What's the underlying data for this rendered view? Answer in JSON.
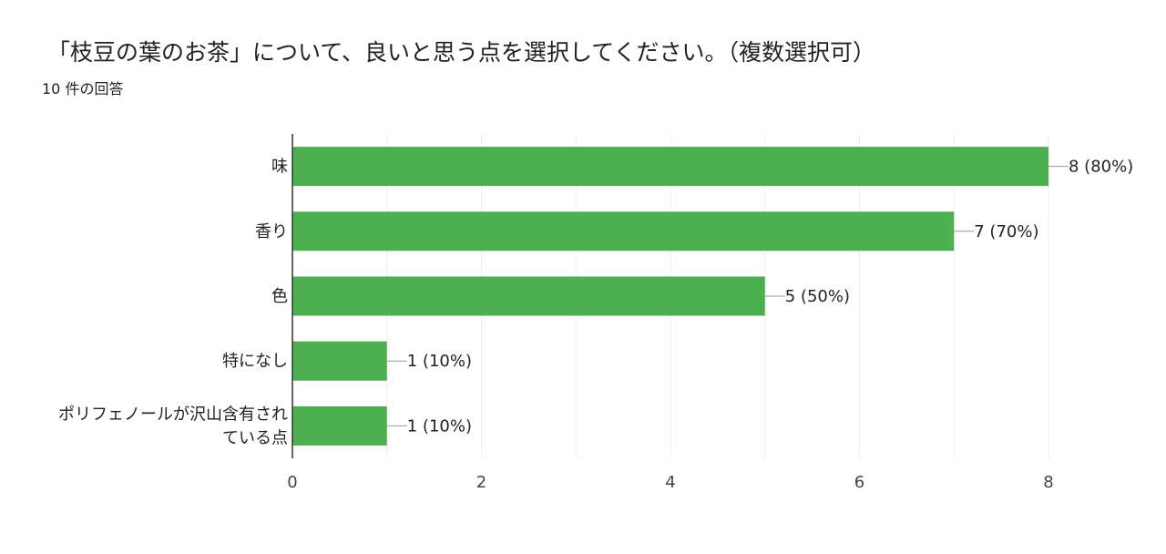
{
  "header": {
    "title": "「枝豆の葉のお茶」について、良いと思う点を選択してください。（複数選択可）",
    "response_count": "10 件の回答"
  },
  "chart_data": {
    "type": "bar",
    "orientation": "horizontal",
    "categories": [
      [
        "味"
      ],
      [
        "香り"
      ],
      [
        "色"
      ],
      [
        "特になし"
      ],
      [
        "ポリフェノールが沢山含有され",
        "ている点"
      ]
    ],
    "values": [
      8,
      7,
      5,
      1,
      1
    ],
    "data_labels": [
      "8 (80%)",
      "7 (70%)",
      "5 (50%)",
      "1 (10%)",
      "1 (10%)"
    ],
    "xlim": [
      0,
      8
    ],
    "xticks": [
      0,
      2,
      4,
      6,
      8
    ],
    "bar_color": "#4caf50",
    "grid": true
  }
}
